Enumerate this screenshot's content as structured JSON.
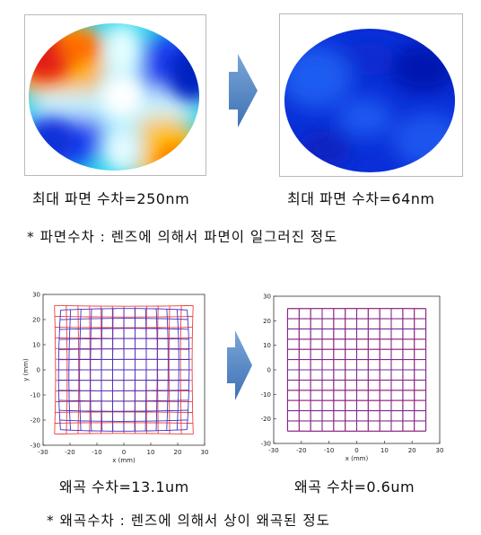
{
  "wavefront": {
    "before_caption": "최대 파면 수차=250nm",
    "after_caption": "최대 파면 수차=64nm",
    "note": "* 파면수차 : 렌즈에 의해서 파면이 일그러진 정도",
    "arrow_color": "#4f86c6"
  },
  "distortion": {
    "before_caption": "왜곡 수차=13.1um",
    "after_caption": "왜곡 수차=0.6um",
    "note": "* 왜곡수차 : 렌즈에 의해서 상이 왜곡된 정도",
    "arrow_color": "#4f86c6",
    "xlabel": "x (mm)",
    "ylabel": "y (mm)",
    "ticks": [
      -30,
      -20,
      -10,
      0,
      10,
      20,
      30
    ],
    "grid_color_ideal": "#e8403c",
    "grid_color_real": "#4030c8"
  }
}
